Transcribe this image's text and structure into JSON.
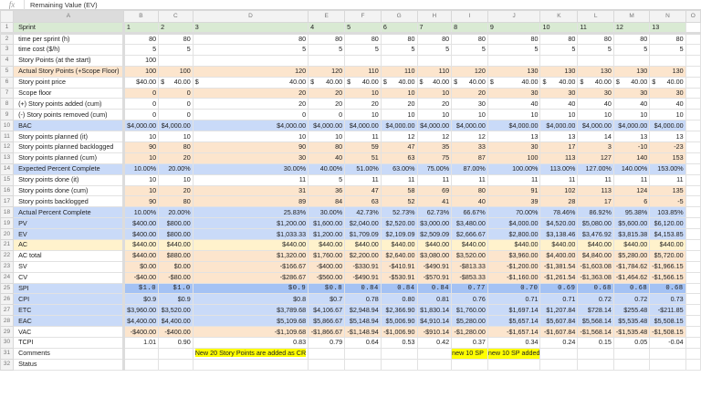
{
  "formula_bar": {
    "fx_label": "fx",
    "value": "Remaining Value (EV)"
  },
  "columns": [
    "A",
    "B",
    "C",
    "D",
    "E",
    "F",
    "G",
    "H",
    "I",
    "J",
    "K",
    "L",
    "M",
    "N",
    "O"
  ],
  "rows": [
    {
      "n": "1",
      "label": "Sprint",
      "style": "g",
      "align": "nb",
      "cells": [
        "1",
        "2",
        "3",
        "4",
        "5",
        "6",
        "7",
        "8",
        "9",
        "10",
        "11",
        "12",
        "13"
      ]
    },
    {
      "n": "2",
      "label": "time per sprint (h)",
      "style": "",
      "cells": [
        "80",
        "80",
        "80",
        "80",
        "80",
        "80",
        "80",
        "80",
        "80",
        "80",
        "80",
        "80",
        "80"
      ]
    },
    {
      "n": "3",
      "label": "time cost ($/h)",
      "style": "",
      "cells": [
        "5",
        "5",
        "5",
        "5",
        "5",
        "5",
        "5",
        "5",
        "5",
        "5",
        "5",
        "5",
        "5"
      ]
    },
    {
      "n": "4",
      "label": "Story Points (at the start)",
      "style": "",
      "cells": [
        "100",
        "",
        "",
        "",
        "",
        "",
        "",
        "",
        "",
        "",
        "",
        "",
        ""
      ]
    },
    {
      "n": "5",
      "label": "Actual Story Points (+Scope Floor)",
      "style": "o",
      "lblstyle": "o",
      "cells": [
        "100",
        "100",
        "120",
        "120",
        "110",
        "110",
        "110",
        "120",
        "130",
        "130",
        "130",
        "130",
        "130"
      ]
    },
    {
      "n": "6",
      "label": "Story point price",
      "style": "",
      "dollar": true,
      "cells": [
        "$40.00",
        "40.00",
        "40.00",
        "40.00",
        "40.00",
        "40.00",
        "40.00",
        "40.00",
        "40.00",
        "40.00",
        "40.00",
        "40.00",
        "40.00"
      ]
    },
    {
      "n": "7",
      "label": "Scope floor",
      "style": "o",
      "cells": [
        "0",
        "0",
        "20",
        "20",
        "10",
        "10",
        "10",
        "20",
        "30",
        "30",
        "30",
        "30",
        "30"
      ]
    },
    {
      "n": "8",
      "label": " (+) Story points added (cum)",
      "style": "",
      "cells": [
        "0",
        "0",
        "20",
        "20",
        "20",
        "20",
        "20",
        "30",
        "40",
        "40",
        "40",
        "40",
        "40"
      ]
    },
    {
      "n": "9",
      "label": "(-) Story points removed (cum)",
      "style": "",
      "cells": [
        "0",
        "0",
        "0",
        "0",
        "10",
        "10",
        "10",
        "10",
        "10",
        "10",
        "10",
        "10",
        "10"
      ]
    },
    {
      "n": "10",
      "label": "BAC",
      "style": "b",
      "lblstyle": "b",
      "cells": [
        "$4,000.00",
        "$4,000.00",
        "$4,000.00",
        "$4,000.00",
        "$4,000.00",
        "$4,000.00",
        "$4,000.00",
        "$4,000.00",
        "$4,000.00",
        "$4,000.00",
        "$4,000.00",
        "$4,000.00",
        "$4,000.00"
      ]
    },
    {
      "n": "11",
      "label": "Story points planned (it)",
      "style": "",
      "cells": [
        "10",
        "10",
        "10",
        "10",
        "11",
        "12",
        "12",
        "12",
        "13",
        "13",
        "14",
        "13",
        "13"
      ]
    },
    {
      "n": "12",
      "label": "Story points planned backlogged",
      "style": "o",
      "cells": [
        "90",
        "80",
        "90",
        "80",
        "59",
        "47",
        "35",
        "33",
        "30",
        "17",
        "3",
        "-10",
        "-23"
      ]
    },
    {
      "n": "13",
      "label": "Story points planned (cum)",
      "style": "o",
      "cells": [
        "10",
        "20",
        "30",
        "40",
        "51",
        "63",
        "75",
        "87",
        "100",
        "113",
        "127",
        "140",
        "153"
      ]
    },
    {
      "n": "14",
      "label": "Expected Percent Complete",
      "style": "b",
      "lblstyle": "b",
      "cells": [
        "10.00%",
        "20.00%",
        "30.00%",
        "40.00%",
        "51.00%",
        "63.00%",
        "75.00%",
        "87.00%",
        "100.00%",
        "113.00%",
        "127.00%",
        "140.00%",
        "153.00%"
      ]
    },
    {
      "n": "15",
      "label": "Story points done (it)",
      "style": "",
      "cells": [
        "10",
        "10",
        "11",
        "5",
        "11",
        "11",
        "11",
        "11",
        "11",
        "11",
        "11",
        "11",
        "11"
      ]
    },
    {
      "n": "16",
      "label": "Story points done (cum)",
      "style": "o",
      "cells": [
        "10",
        "20",
        "31",
        "36",
        "47",
        "58",
        "69",
        "80",
        "91",
        "102",
        "113",
        "124",
        "135"
      ]
    },
    {
      "n": "17",
      "label": "Story points backlogged",
      "style": "o",
      "cells": [
        "90",
        "80",
        "89",
        "84",
        "63",
        "52",
        "41",
        "40",
        "39",
        "28",
        "17",
        "6",
        "-5"
      ]
    },
    {
      "n": "18",
      "label": "Actual Percent Complete",
      "style": "b",
      "lblstyle": "b",
      "cells": [
        "10.00%",
        "20.00%",
        "25.83%",
        "30.00%",
        "42.73%",
        "52.73%",
        "62.73%",
        "66.67%",
        "70.00%",
        "78.46%",
        "86.92%",
        "95.38%",
        "103.85%"
      ]
    },
    {
      "n": "19",
      "label": "PV",
      "style": "b",
      "lblstyle": "b",
      "cells": [
        "$400.00",
        "$800.00",
        "$1,200.00",
        "$1,600.00",
        "$2,040.00",
        "$2,520.00",
        "$3,000.00",
        "$3,480.00",
        "$4,000.00",
        "$4,520.00",
        "$5,080.00",
        "$5,600.00",
        "$6,120.00"
      ]
    },
    {
      "n": "20",
      "label": "EV",
      "style": "b",
      "lblstyle": "b",
      "cells": [
        "$400.00",
        "$800.00",
        "$1,033.33",
        "$1,200.00",
        "$1,709.09",
        "$2,109.09",
        "$2,509.09",
        "$2,666.67",
        "$2,800.00",
        "$3,138.46",
        "$3,476.92",
        "$3,815.38",
        "$4,153.85"
      ]
    },
    {
      "n": "21",
      "label": "AC",
      "style": "y",
      "lblstyle": "y",
      "cells": [
        "$440.00",
        "$440.00",
        "$440.00",
        "$440.00",
        "$440.00",
        "$440.00",
        "$440.00",
        "$440.00",
        "$440.00",
        "$440.00",
        "$440.00",
        "$440.00",
        "$440.00"
      ]
    },
    {
      "n": "22",
      "label": "AC total",
      "style": "o",
      "cells": [
        "$440.00",
        "$880.00",
        "$1,320.00",
        "$1,760.00",
        "$2,200.00",
        "$2,640.00",
        "$3,080.00",
        "$3,520.00",
        "$3,960.00",
        "$4,400.00",
        "$4,840.00",
        "$5,280.00",
        "$5,720.00"
      ]
    },
    {
      "n": "23",
      "label": "SV",
      "style": "o",
      "cells": [
        "$0.00",
        "$0.00",
        "-$166.67",
        "-$400.00",
        "-$330.91",
        "-$410.91",
        "-$490.91",
        "-$813.33",
        "-$1,200.00",
        "-$1,381.54",
        "-$1,603.08",
        "-$1,784.62",
        "-$1,966.15"
      ]
    },
    {
      "n": "24",
      "label": "CV",
      "style": "o",
      "cells": [
        "-$40.00",
        "-$80.00",
        "-$286.67",
        "-$560.00",
        "-$490.91",
        "-$530.91",
        "-$570.91",
        "-$853.33",
        "-$1,160.00",
        "-$1,261.54",
        "-$1,363.08",
        "-$1,464.62",
        "-$1,566.15"
      ]
    },
    {
      "n": "25",
      "label": "SPI",
      "style": "bd",
      "lblstyle": "b",
      "mono": true,
      "cells": [
        "$1.0",
        "$1.0",
        "$0.9",
        "$0.8",
        "0.84",
        "0.84",
        "0.84",
        "0.77",
        "0.70",
        "0.69",
        "0.68",
        "0.68",
        "0.68"
      ]
    },
    {
      "n": "26",
      "label": "CPI",
      "style": "b",
      "lblstyle": "b",
      "cells": [
        "$0.9",
        "$0.9",
        "$0.8",
        "$0.7",
        "0.78",
        "0.80",
        "0.81",
        "0.76",
        "0.71",
        "0.71",
        "0.72",
        "0.72",
        "0.73"
      ]
    },
    {
      "n": "27",
      "label": "ETC",
      "style": "b",
      "lblstyle": "b",
      "cells": [
        "$3,960.00",
        "$3,520.00",
        "$3,789.68",
        "$4,106.67",
        "$2,948.94",
        "$2,366.90",
        "$1,830.14",
        "$1,760.00",
        "$1,697.14",
        "$1,207.84",
        "$728.14",
        "$255.48",
        "-$211.85"
      ]
    },
    {
      "n": "28",
      "label": "EAC",
      "style": "b",
      "lblstyle": "b",
      "cells": [
        "$4,400.00",
        "$4,400.00",
        "$5,109.68",
        "$5,866.67",
        "$5,148.94",
        "$5,006.90",
        "$4,910.14",
        "$5,280.00",
        "$5,657.14",
        "$5,607.84",
        "$5,568.14",
        "$5,535.48",
        "$5,508.15"
      ]
    },
    {
      "n": "29",
      "label": "VAC",
      "style": "o",
      "cells": [
        "-$400.00",
        "-$400.00",
        "-$1,109.68",
        "-$1,866.67",
        "-$1,148.94",
        "-$1,006.90",
        "-$910.14",
        "-$1,280.00",
        "-$1,657.14",
        "-$1,607.84",
        "-$1,568.14",
        "-$1,535.48",
        "-$1,508.15"
      ]
    },
    {
      "n": "30",
      "label": "TCPI",
      "style": "",
      "cells": [
        "1.01",
        "0.90",
        "0.83",
        "0.79",
        "0.64",
        "0.53",
        "0.42",
        "0.37",
        "0.34",
        "0.24",
        "0.15",
        "0.05",
        "-0.04"
      ]
    },
    {
      "n": "31",
      "label": "Comments",
      "style": "",
      "comments": true,
      "cells": [
        "",
        "",
        "New 20 Story Points are added as CR",
        "",
        "",
        "",
        "",
        "new 10 SP",
        "new 10 SP added",
        "",
        "",
        "",
        ""
      ]
    },
    {
      "n": "32",
      "label": "Status",
      "style": "",
      "cells": [
        "",
        "",
        "",
        "",
        "",
        "",
        "",
        "",
        "",
        "",
        "",
        "",
        ""
      ]
    }
  ]
}
